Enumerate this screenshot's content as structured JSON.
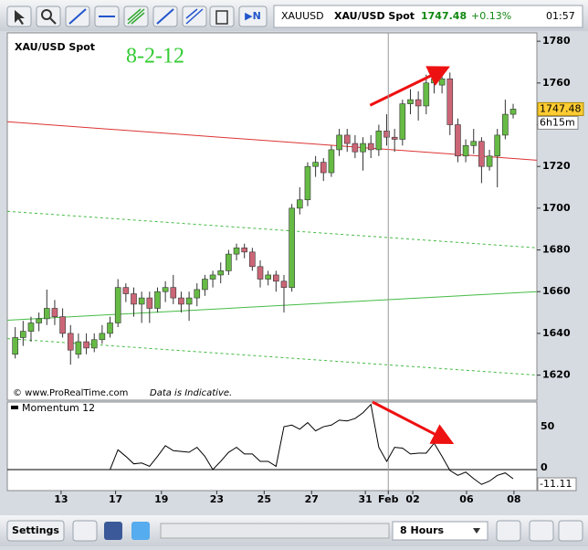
{
  "toolbar": {
    "symbol": "XAUUSD",
    "name": "XAU/USD Spot",
    "price": "1747.48",
    "change": "+0.13%",
    "time": "01:57"
  },
  "bottom_bar": {
    "settings": "Settings",
    "timeframe": "8 Hours"
  },
  "chart_data": [
    {
      "type": "candlestick",
      "title": "XAU/USD Spot",
      "annotation": "8-2-12",
      "source": "© www.ProRealTime.com",
      "note": "Data is Indicative.",
      "countdown": "6h15m",
      "up_color": "#66bb44",
      "down_color": "#cc6677",
      "open": [
        1630,
        1638,
        1641,
        1645,
        1647,
        1652,
        1648,
        1640,
        1630,
        1636,
        1633,
        1637,
        1640,
        1645,
        1662,
        1659,
        1654,
        1657,
        1652,
        1660,
        1662,
        1657,
        1654,
        1657,
        1661,
        1666,
        1668,
        1670,
        1678,
        1681,
        1679,
        1672,
        1666,
        1668,
        1665,
        1662,
        1700,
        1704,
        1720,
        1722,
        1717,
        1728,
        1735,
        1731,
        1727,
        1731,
        1728,
        1737,
        1734,
        1733,
        1750,
        1752,
        1749,
        1760,
        1759,
        1762,
        1740,
        1725,
        1730,
        1732,
        1720,
        1725,
        1735,
        1745
      ],
      "high": [
        1643,
        1646,
        1648,
        1650,
        1661,
        1656,
        1652,
        1644,
        1640,
        1640,
        1640,
        1644,
        1648,
        1666,
        1664,
        1662,
        1660,
        1660,
        1662,
        1665,
        1668,
        1660,
        1660,
        1664,
        1668,
        1670,
        1674,
        1680,
        1683,
        1683,
        1681,
        1675,
        1670,
        1670,
        1668,
        1702,
        1710,
        1722,
        1725,
        1724,
        1730,
        1738,
        1738,
        1735,
        1734,
        1735,
        1740,
        1745,
        1738,
        1752,
        1757,
        1756,
        1764,
        1765,
        1764,
        1765,
        1743,
        1733,
        1738,
        1734,
        1728,
        1738,
        1752,
        1750
      ],
      "low": [
        1628,
        1634,
        1636,
        1641,
        1644,
        1644,
        1638,
        1625,
        1628,
        1630,
        1631,
        1635,
        1638,
        1643,
        1655,
        1648,
        1645,
        1645,
        1650,
        1655,
        1654,
        1650,
        1646,
        1653,
        1658,
        1662,
        1664,
        1668,
        1675,
        1676,
        1670,
        1662,
        1663,
        1660,
        1650,
        1660,
        1697,
        1701,
        1715,
        1713,
        1715,
        1725,
        1727,
        1724,
        1718,
        1724,
        1725,
        1730,
        1727,
        1730,
        1745,
        1742,
        1745,
        1755,
        1755,
        1735,
        1722,
        1722,
        1726,
        1712,
        1718,
        1710,
        1733,
        1743
      ],
      "close": [
        1638,
        1641,
        1645,
        1647,
        1652,
        1648,
        1640,
        1632,
        1636,
        1633,
        1637,
        1640,
        1645,
        1662,
        1659,
        1654,
        1657,
        1652,
        1660,
        1662,
        1657,
        1654,
        1657,
        1661,
        1666,
        1668,
        1670,
        1678,
        1681,
        1679,
        1672,
        1666,
        1668,
        1665,
        1662,
        1700,
        1704,
        1720,
        1722,
        1717,
        1728,
        1735,
        1731,
        1727,
        1731,
        1728,
        1737,
        1734,
        1733,
        1750,
        1752,
        1749,
        1760,
        1762,
        1762,
        1740,
        1725,
        1730,
        1732,
        1720,
        1725,
        1735,
        1745,
        1747.48
      ],
      "xlim": [
        -1,
        66
      ],
      "ylim": [
        1608,
        1784
      ],
      "yticks": [
        1620,
        1640,
        1660,
        1680,
        1700,
        1720,
        1740,
        1760,
        1780
      ],
      "trend_lines": [
        {
          "color": "#dd3333",
          "style": "solid",
          "x": [
            -1,
            66
          ],
          "y": [
            1741.4,
            1723
          ]
        },
        {
          "color": "#44bb44",
          "style": "solid",
          "x": [
            -1,
            66
          ],
          "y": [
            1646.3,
            1660
          ]
        },
        {
          "color": "#44bb44",
          "style": "dashed",
          "x": [
            -1,
            66
          ],
          "y": [
            1698.5,
            1681
          ]
        },
        {
          "color": "#44bb44",
          "style": "dashed",
          "x": [
            -1,
            66
          ],
          "y": [
            1637.5,
            1620
          ]
        }
      ],
      "arrows": [
        {
          "color": "#ee1111",
          "x": [
            44.9,
            54.4
          ],
          "y": [
            1749.3,
            1766.8
          ]
        }
      ]
    },
    {
      "type": "line",
      "title": "Momentum 12",
      "color": "#000000",
      "values": [
        null,
        null,
        null,
        null,
        null,
        null,
        null,
        null,
        null,
        null,
        null,
        null,
        0,
        24,
        16,
        7,
        8,
        4,
        16,
        29,
        23,
        22,
        21,
        27,
        16,
        0,
        10,
        21,
        27,
        19,
        19,
        10,
        10,
        4,
        52,
        54,
        49,
        57,
        47,
        52,
        54,
        60,
        59,
        62,
        69,
        79,
        27,
        10,
        27,
        26,
        19,
        20,
        20,
        32,
        16,
        -1,
        -7,
        -3,
        -11,
        -18,
        -14,
        -7,
        -4,
        -11.11
      ],
      "xlim": [
        -1,
        66
      ],
      "ylim": [
        -25.5,
        82
      ],
      "yticks": [
        0,
        50
      ],
      "xticks": [
        {
          "value": 5.8,
          "label": "13"
        },
        {
          "value": 12.7,
          "label": "17"
        },
        {
          "value": 18.5,
          "label": "19"
        },
        {
          "value": 25.5,
          "label": "23"
        },
        {
          "value": 31.5,
          "label": "25"
        },
        {
          "value": 37.5,
          "label": "27"
        },
        {
          "value": 44.3,
          "label": "31"
        },
        {
          "value": 47.2,
          "label": "Feb"
        },
        {
          "value": 50.3,
          "label": "02"
        },
        {
          "value": 57.1,
          "label": "06"
        },
        {
          "value": 63.1,
          "label": "08"
        }
      ],
      "arrows": [
        {
          "color": "#ee1111",
          "x": [
            45.2,
            54.9
          ],
          "y": [
            82,
            34
          ]
        }
      ]
    }
  ]
}
